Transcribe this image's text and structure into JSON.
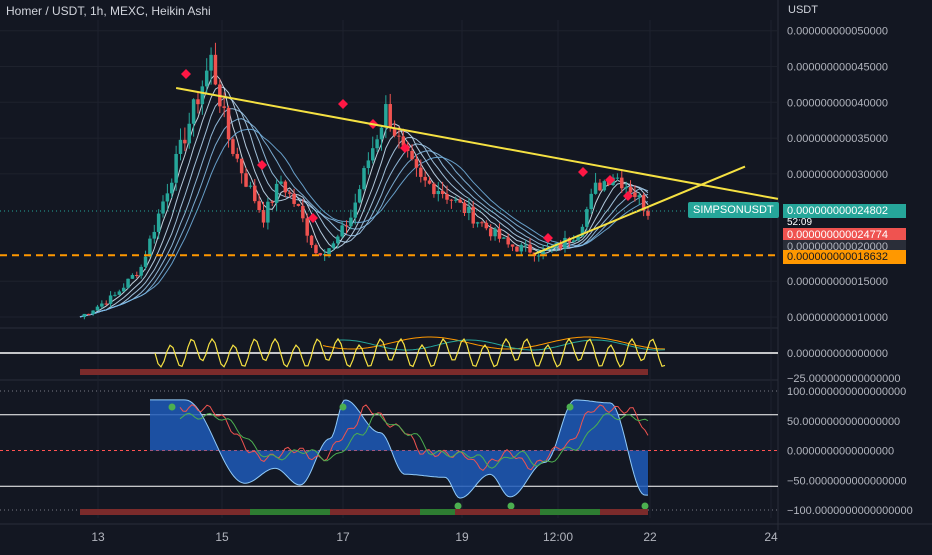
{
  "header": {
    "title": "Homer / USDT, 1h, MEXC, Heikin Ashi",
    "currency": "USDT"
  },
  "price_axis": {
    "ticks": [
      "0.000000000050000",
      "0.000000000045000",
      "0.000000000040000",
      "0.000000000035000",
      "0.000000000030000",
      "0.000000000015000",
      "0.000000000010000"
    ]
  },
  "price_tags": {
    "symbol": "SIMPSONUSDT",
    "current": "0.000000000024802",
    "countdown": "52:09",
    "red": "0.000000000024774",
    "grey": "0.000000000020000",
    "orange": "0.000000000018632"
  },
  "osc1_axis": {
    "ticks": [
      "0.000000000000000",
      "−25.000000000000000"
    ]
  },
  "osc2_axis": {
    "ticks": [
      "100.0000000000000000",
      "50.0000000000000000",
      "0.0000000000000000",
      "−50.0000000000000000",
      "−100.0000000000000000"
    ]
  },
  "time_axis": {
    "labels": [
      "13",
      "15",
      "17",
      "19",
      "12:00",
      "22",
      "24"
    ]
  },
  "colors": {
    "background": "#131722",
    "up": "#26a69a",
    "down": "#ef5350",
    "trendline": "#f5e142",
    "support": "#ff9800"
  },
  "chart_data": [
    {
      "type": "candlestick",
      "title": "Homer / USDT, 1h, MEXC, Heikin Ashi",
      "ylabel": "USDT",
      "ylim": [
        8.6e-12,
        5.15e-11
      ],
      "x_labels": [
        "13",
        "15",
        "17",
        "19",
        "12:00",
        "22",
        "24"
      ],
      "price_path": [
        [
          0,
          1e-11
        ],
        [
          8,
          1.3e-11
        ],
        [
          14,
          1.7e-11
        ],
        [
          20,
          2.8e-11
        ],
        [
          26,
          3.9e-11
        ],
        [
          30,
          4.6e-11
        ],
        [
          34,
          3.5e-11
        ],
        [
          38,
          2.9e-11
        ],
        [
          42,
          2.4e-11
        ],
        [
          46,
          2.9e-11
        ],
        [
          50,
          2.5e-11
        ],
        [
          54,
          1.9e-11
        ],
        [
          58,
          2e-11
        ],
        [
          62,
          2.4e-11
        ],
        [
          66,
          3.2e-11
        ],
        [
          70,
          3.9e-11
        ],
        [
          74,
          3.3e-11
        ],
        [
          78,
          2.9e-11
        ],
        [
          82,
          2.8e-11
        ],
        [
          86,
          2.6e-11
        ],
        [
          90,
          2.4e-11
        ],
        [
          94,
          2.2e-11
        ],
        [
          98,
          2e-11
        ],
        [
          102,
          1.95e-11
        ],
        [
          106,
          1.9e-11
        ],
        [
          110,
          2e-11
        ],
        [
          114,
          2.2e-11
        ],
        [
          118,
          2.8e-11
        ],
        [
          122,
          3e-11
        ],
        [
          126,
          2.8e-11
        ],
        [
          130,
          2.48e-11
        ]
      ],
      "trendline_upper": {
        "start": [
          22,
          4.2e-11
        ],
        "end": [
          156,
          2.65e-11
        ]
      },
      "trendline_lower": {
        "start": [
          104,
          1.88e-11
        ],
        "end": [
          156,
          2.85e-11
        ]
      },
      "support_level": 1.8632e-11,
      "last_price": 2.4802e-11
    },
    {
      "type": "line",
      "name": "oscillator-1",
      "ylim": [
        -25,
        25
      ],
      "zero_line": 0
    },
    {
      "type": "area",
      "name": "oscillator-2",
      "ylim": [
        -100,
        100
      ],
      "levels": [
        100,
        60,
        0,
        -60,
        -100
      ]
    }
  ]
}
